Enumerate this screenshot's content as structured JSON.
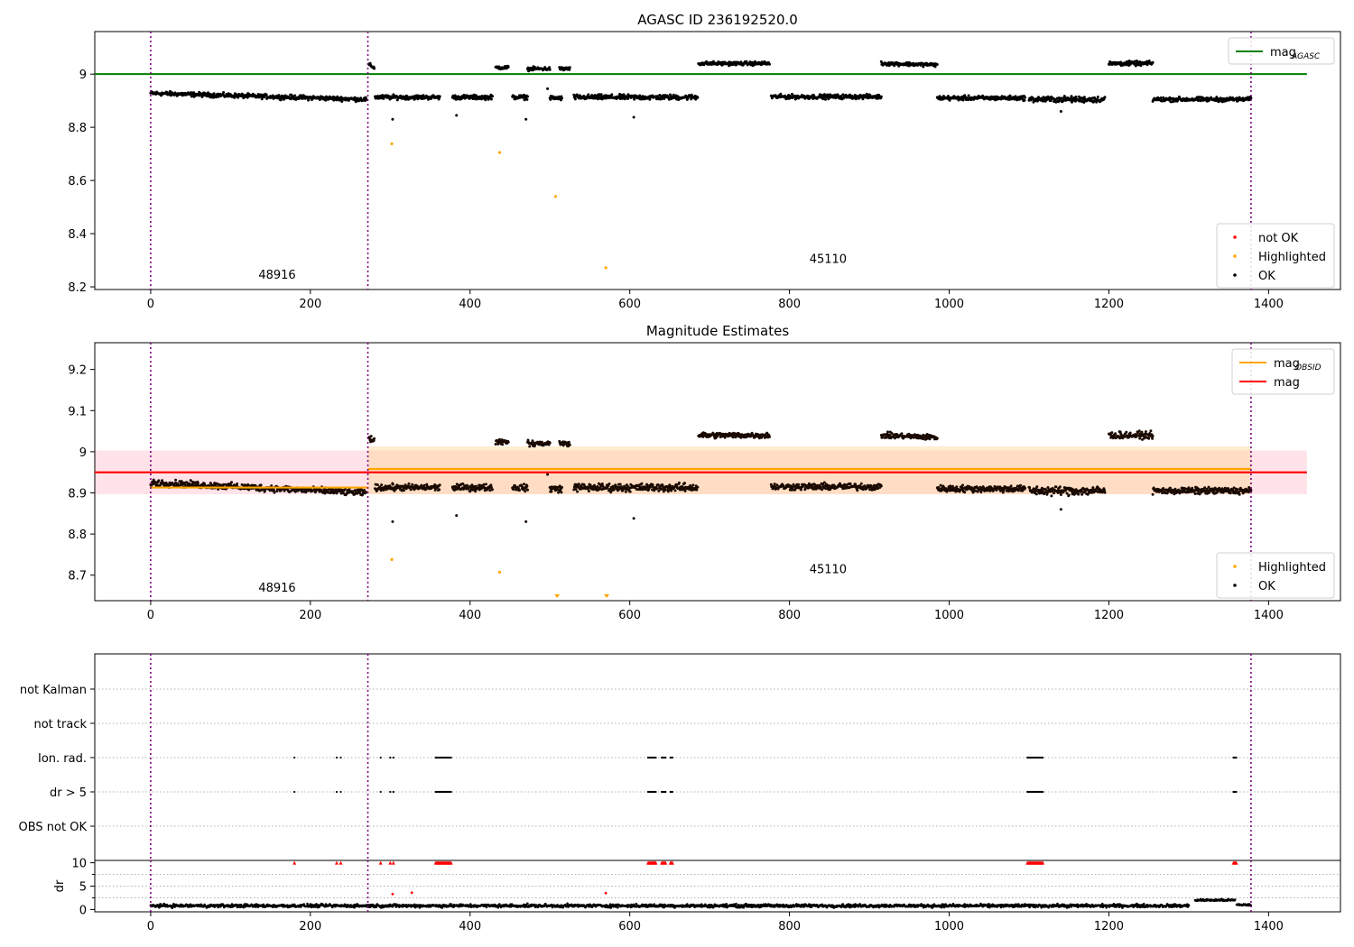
{
  "figure": {
    "chart_data": [
      {
        "type": "scatter",
        "title": "AGASC ID 236192520.0",
        "xlim": [
          -70,
          1490
        ],
        "ylim": [
          8.19,
          9.16
        ],
        "x_ticks": [
          0,
          200,
          400,
          600,
          800,
          1000,
          1200,
          1400
        ],
        "y_ticks": [
          8.2,
          8.4,
          8.6,
          8.8,
          9.0
        ],
        "obs_boundaries": [
          0,
          272,
          1378
        ],
        "obs_labels": [
          {
            "text": "48916",
            "x": 135,
            "y": 8.23
          },
          {
            "text": "45110",
            "x": 825,
            "y": 8.29
          }
        ],
        "lines": [
          {
            "name": "mag_AGASC",
            "color": "#008000",
            "x": [
              -70,
              1448
            ],
            "y": [
              9.0,
              9.0
            ]
          }
        ],
        "legend_upper": {
          "position": "top-right",
          "entries": [
            {
              "label": "mag",
              "sub": "AGASC",
              "kind": "line",
              "color": "#008000"
            }
          ]
        },
        "legend_lower": {
          "position": "bottom-right",
          "entries": [
            {
              "label": "not OK",
              "kind": "dot",
              "color": "#ff0000"
            },
            {
              "label": "Highlighted",
              "kind": "dot",
              "color": "#ffa500"
            },
            {
              "label": "OK",
              "kind": "dot",
              "color": "#000000"
            }
          ]
        },
        "ok_segments": [
          {
            "x0": 0,
            "x1": 270,
            "y0": 8.928,
            "y1": 8.905,
            "spread": 0.012
          },
          {
            "x0": 273,
            "x1": 280,
            "y0": 9.035,
            "y1": 9.025,
            "spread": 0.01
          },
          {
            "x0": 281,
            "x1": 362,
            "y0": 8.913,
            "y1": 8.913,
            "spread": 0.012
          },
          {
            "x0": 378,
            "x1": 428,
            "y0": 8.913,
            "y1": 8.913,
            "spread": 0.012
          },
          {
            "x0": 432,
            "x1": 448,
            "y0": 9.025,
            "y1": 9.025,
            "spread": 0.01
          },
          {
            "x0": 453,
            "x1": 472,
            "y0": 8.913,
            "y1": 8.913,
            "spread": 0.012
          },
          {
            "x0": 472,
            "x1": 500,
            "y0": 9.02,
            "y1": 9.02,
            "spread": 0.01
          },
          {
            "x0": 500,
            "x1": 515,
            "y0": 8.91,
            "y1": 8.91,
            "spread": 0.012
          },
          {
            "x0": 512,
            "x1": 525,
            "y0": 9.02,
            "y1": 9.02,
            "spread": 0.01
          },
          {
            "x0": 530,
            "x1": 685,
            "y0": 8.913,
            "y1": 8.913,
            "spread": 0.014
          },
          {
            "x0": 686,
            "x1": 775,
            "y0": 9.04,
            "y1": 9.04,
            "spread": 0.01
          },
          {
            "x0": 777,
            "x1": 915,
            "y0": 8.915,
            "y1": 8.915,
            "spread": 0.012
          },
          {
            "x0": 915,
            "x1": 985,
            "y0": 9.04,
            "y1": 9.035,
            "spread": 0.01
          },
          {
            "x0": 985,
            "x1": 1095,
            "y0": 8.91,
            "y1": 8.91,
            "spread": 0.012
          },
          {
            "x0": 1100,
            "x1": 1195,
            "y0": 8.905,
            "y1": 8.905,
            "spread": 0.016
          },
          {
            "x0": 1200,
            "x1": 1255,
            "y0": 9.04,
            "y1": 9.04,
            "spread": 0.012
          },
          {
            "x0": 1255,
            "x1": 1378,
            "y0": 8.905,
            "y1": 8.905,
            "spread": 0.012
          }
        ],
        "ok_outliers": [
          {
            "x": 303,
            "y": 8.83
          },
          {
            "x": 383,
            "y": 8.845
          },
          {
            "x": 470,
            "y": 8.83
          },
          {
            "x": 605,
            "y": 8.838
          },
          {
            "x": 1140,
            "y": 8.86
          },
          {
            "x": 497,
            "y": 8.945
          }
        ],
        "highlighted": [
          {
            "x": 302,
            "y": 8.738
          },
          {
            "x": 437,
            "y": 8.705
          },
          {
            "x": 507,
            "y": 8.54
          },
          {
            "x": 570,
            "y": 8.272
          }
        ],
        "not_ok": []
      },
      {
        "type": "scatter",
        "title": "Magnitude Estimates",
        "xlim": [
          -70,
          1490
        ],
        "ylim": [
          8.638,
          9.265
        ],
        "x_ticks": [
          0,
          200,
          400,
          600,
          800,
          1000,
          1200,
          1400
        ],
        "y_ticks": [
          8.7,
          8.8,
          8.9,
          9.0,
          9.1,
          9.2
        ],
        "obs_boundaries": [
          0,
          272,
          1378
        ],
        "obs_labels": [
          {
            "text": "48916",
            "x": 135,
            "y": 8.66
          },
          {
            "text": "45110",
            "x": 825,
            "y": 8.705
          }
        ],
        "bands": [
          {
            "color": "#ffc0cb",
            "opacity": 0.45,
            "x0": -70,
            "x1": 1448,
            "y0": 8.897,
            "y1": 9.003
          },
          {
            "color": "#ffd59a",
            "opacity": 0.45,
            "x0": 272,
            "x1": 1378,
            "y0": 8.897,
            "y1": 9.013
          }
        ],
        "lines": [
          {
            "name": "mag_OBSID 48916",
            "color": "#ffa500",
            "x": [
              0,
              272
            ],
            "y": [
              8.913,
              8.913
            ]
          },
          {
            "name": "mag_OBSID 45110",
            "color": "#ffa500",
            "x": [
              272,
              1378
            ],
            "y": [
              8.958,
              8.958
            ]
          },
          {
            "name": "mag",
            "color": "#ff0000",
            "x": [
              -70,
              1448
            ],
            "y": [
              8.95,
              8.95
            ]
          }
        ],
        "legend_upper": {
          "position": "top-right",
          "entries": [
            {
              "label": "mag",
              "sub": "OBSID",
              "kind": "line",
              "color": "#ffa500"
            },
            {
              "label": "mag",
              "sub": "",
              "kind": "line",
              "color": "#ff0000"
            }
          ]
        },
        "legend_lower": {
          "position": "bottom-right",
          "entries": [
            {
              "label": "Highlighted",
              "kind": "dot",
              "color": "#ffa500"
            },
            {
              "label": "OK",
              "kind": "dot",
              "color": "#000000"
            }
          ]
        },
        "ok_segments": [
          {
            "x0": 0,
            "x1": 270,
            "y0": 8.925,
            "y1": 8.9,
            "spread": 0.012
          },
          {
            "x0": 273,
            "x1": 280,
            "y0": 9.035,
            "y1": 9.025,
            "spread": 0.01
          },
          {
            "x0": 281,
            "x1": 362,
            "y0": 8.913,
            "y1": 8.913,
            "spread": 0.012
          },
          {
            "x0": 378,
            "x1": 428,
            "y0": 8.913,
            "y1": 8.913,
            "spread": 0.012
          },
          {
            "x0": 432,
            "x1": 448,
            "y0": 9.025,
            "y1": 9.025,
            "spread": 0.01
          },
          {
            "x0": 453,
            "x1": 472,
            "y0": 8.913,
            "y1": 8.913,
            "spread": 0.012
          },
          {
            "x0": 472,
            "x1": 500,
            "y0": 9.02,
            "y1": 9.02,
            "spread": 0.01
          },
          {
            "x0": 500,
            "x1": 515,
            "y0": 8.91,
            "y1": 8.91,
            "spread": 0.012
          },
          {
            "x0": 512,
            "x1": 525,
            "y0": 9.02,
            "y1": 9.02,
            "spread": 0.01
          },
          {
            "x0": 530,
            "x1": 685,
            "y0": 8.913,
            "y1": 8.913,
            "spread": 0.014
          },
          {
            "x0": 686,
            "x1": 775,
            "y0": 9.04,
            "y1": 9.04,
            "spread": 0.01
          },
          {
            "x0": 777,
            "x1": 915,
            "y0": 8.915,
            "y1": 8.915,
            "spread": 0.012
          },
          {
            "x0": 915,
            "x1": 985,
            "y0": 9.04,
            "y1": 9.035,
            "spread": 0.01
          },
          {
            "x0": 985,
            "x1": 1095,
            "y0": 8.91,
            "y1": 8.91,
            "spread": 0.012
          },
          {
            "x0": 1100,
            "x1": 1195,
            "y0": 8.905,
            "y1": 8.905,
            "spread": 0.016
          },
          {
            "x0": 1200,
            "x1": 1255,
            "y0": 9.04,
            "y1": 9.04,
            "spread": 0.012
          },
          {
            "x0": 1255,
            "x1": 1378,
            "y0": 8.905,
            "y1": 8.905,
            "spread": 0.012
          }
        ],
        "ok_outliers": [
          {
            "x": 303,
            "y": 8.83
          },
          {
            "x": 383,
            "y": 8.845
          },
          {
            "x": 470,
            "y": 8.83
          },
          {
            "x": 605,
            "y": 8.838
          },
          {
            "x": 1140,
            "y": 8.86
          },
          {
            "x": 497,
            "y": 8.945
          }
        ],
        "highlighted": [
          {
            "x": 302,
            "y": 8.738
          },
          {
            "x": 437,
            "y": 8.707
          }
        ],
        "highlighted_off_axis": [
          {
            "x": 509,
            "direction": "below"
          },
          {
            "x": 571,
            "direction": "below"
          }
        ],
        "not_ok": []
      },
      {
        "type": "scatter",
        "title": "",
        "xlim": [
          -70,
          1490
        ],
        "categories": [
          "OBS not OK",
          "dr > 5",
          "Ion. rad.",
          "not track",
          "not Kalman"
        ],
        "obs_boundaries": [
          0,
          272,
          1378
        ],
        "flags": {
          "Ion. rad.": [
            180,
            233,
            238,
            288,
            300,
            304,
            [
              357,
              377
            ],
            [
              623,
              633
            ],
            [
              640,
              645
            ],
            [
              651,
              654
            ],
            [
              1098,
              1118
            ],
            [
              1356,
              1360
            ]
          ],
          "dr > 5": [
            180,
            233,
            238,
            288,
            300,
            304,
            [
              357,
              377
            ],
            [
              623,
              633
            ],
            [
              640,
              645
            ],
            [
              651,
              654
            ],
            [
              1098,
              1118
            ],
            [
              1356,
              1360
            ]
          ]
        }
      },
      {
        "type": "scatter",
        "title": "",
        "ylabel": "dr",
        "xlim": [
          -70,
          1490
        ],
        "ylim": [
          -0.5,
          10.5
        ],
        "x_ticks": [
          0,
          200,
          400,
          600,
          800,
          1000,
          1200,
          1400
        ],
        "y_ticks": [
          0,
          5,
          10
        ],
        "obs_boundaries": [
          0,
          272,
          1378
        ],
        "ok_segments": [
          {
            "x0": 0,
            "x1": 1300,
            "y0": 0.8,
            "y1": 0.8,
            "spread": 0.5
          },
          {
            "x0": 1308,
            "x1": 1358,
            "y0": 2.0,
            "y1": 2.0,
            "spread": 0.3
          },
          {
            "x0": 1360,
            "x1": 1378,
            "y0": 1.0,
            "y1": 1.0,
            "spread": 0.3
          }
        ],
        "not_ok_clipped": [
          180,
          233,
          238,
          288,
          300,
          304,
          [
            357,
            377
          ],
          [
            623,
            633
          ],
          [
            640,
            645
          ],
          [
            651,
            654
          ],
          [
            1098,
            1118
          ],
          [
            1356,
            1360
          ]
        ],
        "not_ok": [
          {
            "x": 303,
            "y": 3.3
          },
          {
            "x": 327,
            "y": 3.6
          },
          {
            "x": 570,
            "y": 3.5
          }
        ]
      }
    ]
  }
}
